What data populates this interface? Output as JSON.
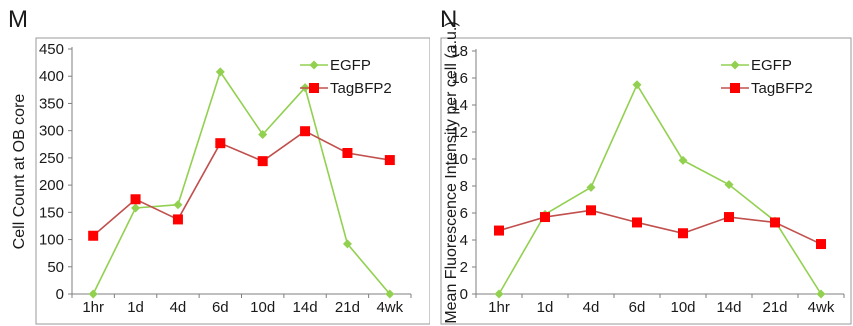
{
  "chart_data": [
    {
      "type": "line",
      "panel_label": "M",
      "ylabel": "Cell Count at OB core",
      "xlabel": "",
      "categories": [
        "1hr",
        "1d",
        "4d",
        "6d",
        "10d",
        "14d",
        "21d",
        "4wk"
      ],
      "ylim": [
        0,
        450
      ],
      "yticks": [
        0,
        50,
        100,
        150,
        200,
        250,
        300,
        350,
        400,
        450
      ],
      "grid": false,
      "legend": "top-right",
      "series": [
        {
          "name": "EGFP",
          "color": "#92d050",
          "marker": "diamond",
          "values": [
            0,
            158,
            164,
            408,
            293,
            379,
            92,
            0
          ]
        },
        {
          "name": "TagBFP2",
          "color": "#c0504d",
          "marker_color": "#ff0000",
          "marker": "square",
          "values": [
            107,
            174,
            137,
            277,
            244,
            299,
            259,
            246
          ]
        }
      ]
    },
    {
      "type": "line",
      "panel_label": "N",
      "ylabel": "Mean Fluorescence Intensity per cell (a.u.)",
      "xlabel": "",
      "categories": [
        "1hr",
        "1d",
        "4d",
        "6d",
        "10d",
        "14d",
        "21d",
        "4wk"
      ],
      "ylim": [
        0,
        18
      ],
      "yticks": [
        0,
        2,
        4,
        6,
        8,
        10,
        12,
        14,
        16,
        18
      ],
      "grid": false,
      "legend": "top-right",
      "series": [
        {
          "name": "EGFP",
          "color": "#92d050",
          "marker": "diamond",
          "values": [
            0,
            5.9,
            7.9,
            15.5,
            9.9,
            8.1,
            5.4,
            0
          ]
        },
        {
          "name": "TagBFP2",
          "color": "#c0504d",
          "marker_color": "#ff0000",
          "marker": "square",
          "values": [
            4.7,
            5.7,
            6.2,
            5.3,
            4.5,
            5.7,
            5.3,
            3.7
          ]
        }
      ]
    }
  ]
}
